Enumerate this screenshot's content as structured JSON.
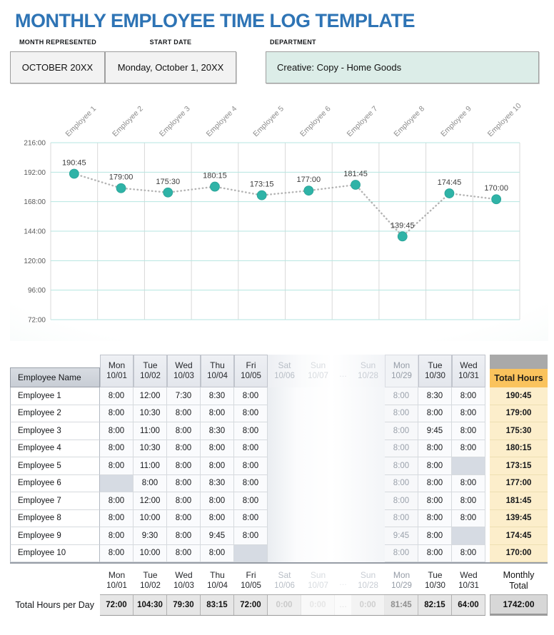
{
  "page": {
    "title": "MONTHLY EMPLOYEE TIME LOG TEMPLATE"
  },
  "colors": {
    "title_blue": "#2E74B5",
    "dept_box_mint": "#DCEDE8",
    "point_teal": "#2FB3A7",
    "grid_teal": "#B5E6E1",
    "grid_gray": "#D9D9D9",
    "dotted_line_gray": "#B3B3B3",
    "total_header_orange": "#FAC35D",
    "total_cell_cream": "#FCEECB",
    "blank_cell_gray": "#D6DBE3",
    "header_block_gray": "#A9A9A9"
  },
  "fields": {
    "month_label": "MONTH REPRESENTED",
    "month_value": "OCTOBER 20XX",
    "start_label": "START DATE",
    "start_value": "Monday, October 1, 20XX",
    "dept_label": "DEPARTMENT",
    "dept_value": "Creative: Copy - Home Goods"
  },
  "chart_data": {
    "type": "line",
    "categories": [
      "Employee 1",
      "Employee 2",
      "Employee 3",
      "Employee 4",
      "Employee 5",
      "Employee 6",
      "Employee 7",
      "Employee 8",
      "Employee 9",
      "Employee 10"
    ],
    "values": [
      "190:45",
      "179:00",
      "175:30",
      "180:15",
      "173:15",
      "177:00",
      "181:45",
      "139:45",
      "174:45",
      "170:00"
    ],
    "values_hours": [
      190.75,
      179.0,
      175.5,
      180.25,
      173.25,
      177.0,
      181.75,
      139.75,
      174.75,
      170.0
    ],
    "yticks": [
      "216:00",
      "192:00",
      "168:00",
      "144:00",
      "120:00",
      "96:00",
      "72:00"
    ],
    "ylim": [
      72,
      216
    ],
    "title": "",
    "xlabel": "",
    "ylabel": "",
    "grid": "on",
    "legend": "none",
    "marker": "circle",
    "line": "dotted"
  },
  "table": {
    "name_header": "Employee Name",
    "total_header": "Total Hours",
    "gap_label": "…",
    "columns": [
      {
        "day": "Mon",
        "date": "10/01",
        "state": "normal"
      },
      {
        "day": "Tue",
        "date": "10/02",
        "state": "normal"
      },
      {
        "day": "Wed",
        "date": "10/03",
        "state": "normal"
      },
      {
        "day": "Thu",
        "date": "10/04",
        "state": "normal"
      },
      {
        "day": "Fri",
        "date": "10/05",
        "state": "normal"
      },
      {
        "day": "Sat",
        "date": "10/06",
        "state": "fade1"
      },
      {
        "day": "Sun",
        "date": "10/07",
        "state": "fade2"
      },
      {
        "day": "Sun",
        "date": "10/28",
        "state": "fade3"
      },
      {
        "day": "Mon",
        "date": "10/29",
        "state": "dim"
      },
      {
        "day": "Tue",
        "date": "10/30",
        "state": "normal"
      },
      {
        "day": "Wed",
        "date": "10/31",
        "state": "normal"
      }
    ],
    "rows": [
      {
        "name": "Employee 1",
        "cells": [
          "8:00",
          "12:00",
          "7:30",
          "8:30",
          "8:00",
          null,
          null,
          null,
          "8:00",
          "8:30",
          "8:00"
        ],
        "total": "190:45"
      },
      {
        "name": "Employee 2",
        "cells": [
          "8:00",
          "10:30",
          "8:00",
          "8:00",
          "8:00",
          null,
          null,
          null,
          "8:00",
          "8:00",
          "8:00"
        ],
        "total": "179:00"
      },
      {
        "name": "Employee 3",
        "cells": [
          "8:00",
          "11:00",
          "8:00",
          "8:30",
          "8:00",
          null,
          null,
          null,
          "8:00",
          "9:45",
          "8:00"
        ],
        "total": "175:30"
      },
      {
        "name": "Employee 4",
        "cells": [
          "8:00",
          "10:30",
          "8:00",
          "8:00",
          "8:00",
          null,
          null,
          null,
          "8:00",
          "8:00",
          "8:00"
        ],
        "total": "180:15"
      },
      {
        "name": "Employee 5",
        "cells": [
          "8:00",
          "11:00",
          "8:00",
          "8:00",
          "8:00",
          null,
          null,
          null,
          "8:00",
          "8:00",
          ""
        ],
        "total": "173:15"
      },
      {
        "name": "Employee 6",
        "cells": [
          "",
          "8:00",
          "8:00",
          "8:30",
          "8:00",
          null,
          null,
          null,
          "8:00",
          "8:00",
          "8:00"
        ],
        "total": "177:00"
      },
      {
        "name": "Employee 7",
        "cells": [
          "8:00",
          "12:00",
          "8:00",
          "8:00",
          "8:00",
          null,
          null,
          null,
          "8:00",
          "8:00",
          "8:00"
        ],
        "total": "181:45"
      },
      {
        "name": "Employee 8",
        "cells": [
          "8:00",
          "10:00",
          "8:00",
          "8:00",
          "8:00",
          null,
          null,
          null,
          "8:00",
          "8:00",
          "8:00"
        ],
        "total": "139:45"
      },
      {
        "name": "Employee 9",
        "cells": [
          "8:00",
          "9:30",
          "8:00",
          "9:45",
          "8:00",
          null,
          null,
          null,
          "9:45",
          "8:00",
          ""
        ],
        "total": "174:45"
      },
      {
        "name": "Employee 10",
        "cells": [
          "8:00",
          "10:00",
          "8:00",
          "8:00",
          "",
          null,
          null,
          null,
          "8:00",
          "8:00",
          "8:00"
        ],
        "total": "170:00"
      }
    ]
  },
  "footer": {
    "row_label": "Total Hours per Day",
    "monthly_total_label_line1": "Monthly",
    "monthly_total_label_line2": "Total",
    "totals": [
      "72:00",
      "104:30",
      "79:30",
      "83:15",
      "72:00",
      "0:00",
      "0:00",
      "0:00",
      "81:45",
      "82:15",
      "64:00"
    ],
    "monthly_total": "1742:00"
  }
}
